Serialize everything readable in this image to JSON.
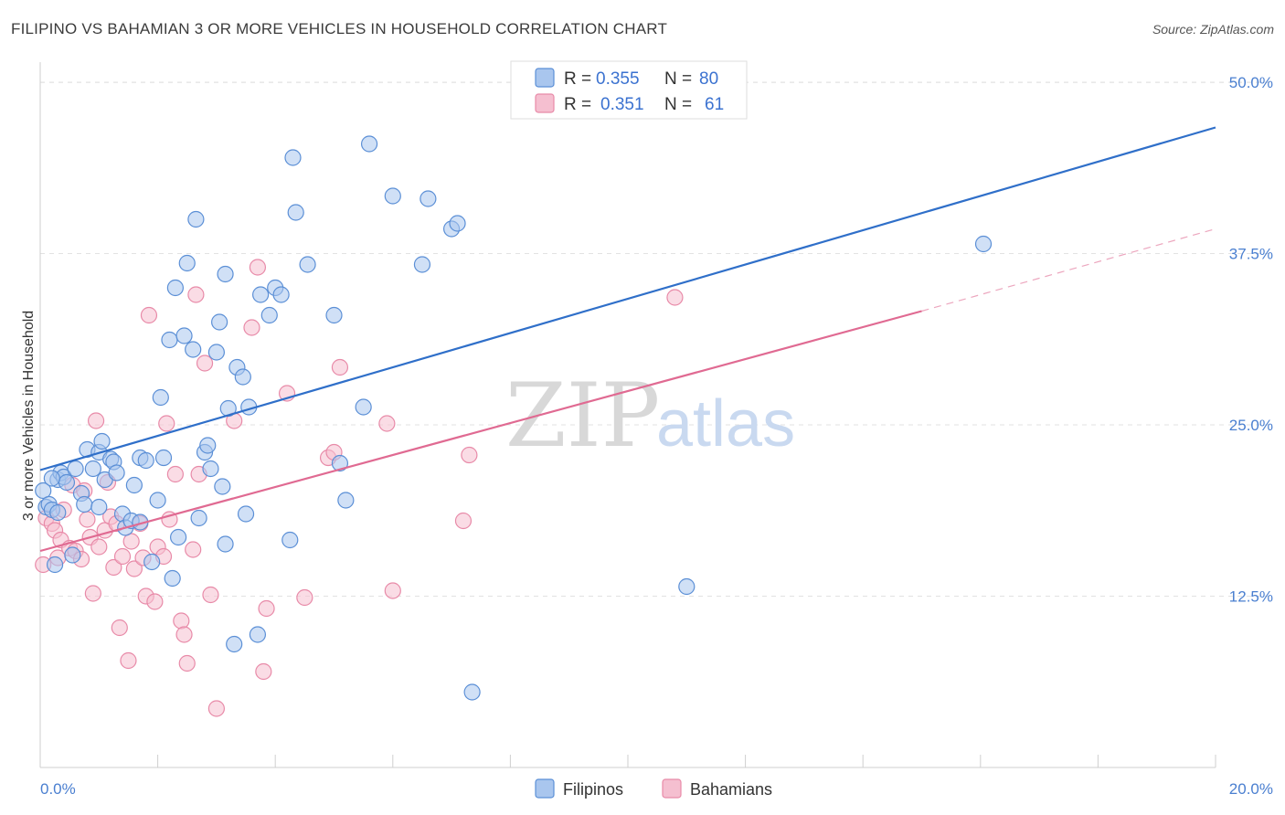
{
  "title": "FILIPINO VS BAHAMIAN 3 OR MORE VEHICLES IN HOUSEHOLD CORRELATION CHART",
  "source": "Source: ZipAtlas.com",
  "watermark": {
    "zip": "ZIP",
    "atlas": "atlas"
  },
  "colors": {
    "filipinos_fill": "#a9c6ee",
    "filipinos_stroke": "#5b8fd6",
    "filipinos_line": "#2f6fc9",
    "bahamians_fill": "#f5bfd0",
    "bahamians_stroke": "#e88aa8",
    "bahamians_line": "#e06a92",
    "grid": "#e2e2e2",
    "tick_label": "#4a7fd0"
  },
  "legend": {
    "r_label": "R =",
    "n_label": "N =",
    "rows": [
      {
        "r": "0.355",
        "n": "80"
      },
      {
        "r": "0.351",
        "n": "61"
      }
    ]
  },
  "bottom_legend": [
    "Filipinos",
    "Bahamians"
  ],
  "chart_data": {
    "type": "scatter",
    "title": "FILIPINO VS BAHAMIAN 3 OR MORE VEHICLES IN HOUSEHOLD CORRELATION CHART",
    "xlabel": "",
    "ylabel": "3 or more Vehicles in Household",
    "xlim": [
      0,
      20
    ],
    "ylim": [
      0,
      51
    ],
    "x_ticks": [
      "0.0%",
      "20.0%"
    ],
    "y_ticks": [
      {
        "value": 12.5,
        "label": "12.5%"
      },
      {
        "value": 25.0,
        "label": "25.0%"
      },
      {
        "value": 37.5,
        "label": "37.5%"
      },
      {
        "value": 50.0,
        "label": "50.0%"
      }
    ],
    "grid": true,
    "legend_position": "top-center",
    "series": [
      {
        "name": "Filipinos",
        "r": 0.355,
        "n": 80,
        "trend": {
          "x": [
            0,
            20
          ],
          "y": [
            21.7,
            46.7
          ],
          "style": "solid"
        },
        "points": [
          [
            0.05,
            20.2
          ],
          [
            0.1,
            19.0
          ],
          [
            0.15,
            19.2
          ],
          [
            0.2,
            18.8
          ],
          [
            0.25,
            14.8
          ],
          [
            0.3,
            21.0
          ],
          [
            0.35,
            21.5
          ],
          [
            0.4,
            21.2
          ],
          [
            0.45,
            20.8
          ],
          [
            0.55,
            15.5
          ],
          [
            0.6,
            21.8
          ],
          [
            0.7,
            20.0
          ],
          [
            0.75,
            19.2
          ],
          [
            0.8,
            23.2
          ],
          [
            0.9,
            21.8
          ],
          [
            1.0,
            23.0
          ],
          [
            1.0,
            19.0
          ],
          [
            1.05,
            23.8
          ],
          [
            1.1,
            21.0
          ],
          [
            1.2,
            22.5
          ],
          [
            1.25,
            22.3
          ],
          [
            1.3,
            21.5
          ],
          [
            1.4,
            18.5
          ],
          [
            1.45,
            17.5
          ],
          [
            1.55,
            18.0
          ],
          [
            1.6,
            20.6
          ],
          [
            1.7,
            22.6
          ],
          [
            1.8,
            22.4
          ],
          [
            1.9,
            15.0
          ],
          [
            2.0,
            19.5
          ],
          [
            2.05,
            27.0
          ],
          [
            2.1,
            22.6
          ],
          [
            2.2,
            31.2
          ],
          [
            2.25,
            13.8
          ],
          [
            2.3,
            35.0
          ],
          [
            2.35,
            16.8
          ],
          [
            2.45,
            31.5
          ],
          [
            2.5,
            36.8
          ],
          [
            2.6,
            30.5
          ],
          [
            2.65,
            40.0
          ],
          [
            2.7,
            18.2
          ],
          [
            2.8,
            23.0
          ],
          [
            2.85,
            23.5
          ],
          [
            2.9,
            21.8
          ],
          [
            3.0,
            30.3
          ],
          [
            3.05,
            32.5
          ],
          [
            3.15,
            36.0
          ],
          [
            3.2,
            26.2
          ],
          [
            3.3,
            9.0
          ],
          [
            3.35,
            29.2
          ],
          [
            3.45,
            28.5
          ],
          [
            3.5,
            18.5
          ],
          [
            3.55,
            26.3
          ],
          [
            3.7,
            9.7
          ],
          [
            3.75,
            34.5
          ],
          [
            3.9,
            33.0
          ],
          [
            4.0,
            35.0
          ],
          [
            4.1,
            34.5
          ],
          [
            4.25,
            16.6
          ],
          [
            4.3,
            44.5
          ],
          [
            4.35,
            40.5
          ],
          [
            4.55,
            36.7
          ],
          [
            5.0,
            33.0
          ],
          [
            5.1,
            22.2
          ],
          [
            5.2,
            19.5
          ],
          [
            5.5,
            26.3
          ],
          [
            5.6,
            45.5
          ],
          [
            6.0,
            41.7
          ],
          [
            6.5,
            36.7
          ],
          [
            6.6,
            41.5
          ],
          [
            7.0,
            39.3
          ],
          [
            7.1,
            39.7
          ],
          [
            7.35,
            5.5
          ],
          [
            11.0,
            13.2
          ],
          [
            16.05,
            38.2
          ],
          [
            3.15,
            16.3
          ],
          [
            0.3,
            18.6
          ],
          [
            1.7,
            17.9
          ],
          [
            3.1,
            20.5
          ],
          [
            0.2,
            21.1
          ]
        ]
      },
      {
        "name": "Bahamians",
        "r": 0.351,
        "n": 61,
        "trend": {
          "x": [
            0,
            15
          ],
          "y": [
            15.8,
            33.3
          ],
          "style": "solid",
          "extension": {
            "x": [
              15,
              20
            ],
            "y": [
              33.3,
              39.3
            ],
            "style": "dashed"
          }
        },
        "points": [
          [
            0.05,
            14.8
          ],
          [
            0.1,
            18.2
          ],
          [
            0.2,
            17.8
          ],
          [
            0.25,
            17.3
          ],
          [
            0.3,
            15.3
          ],
          [
            0.35,
            16.6
          ],
          [
            0.4,
            18.8
          ],
          [
            0.5,
            16.0
          ],
          [
            0.55,
            20.6
          ],
          [
            0.6,
            15.8
          ],
          [
            0.7,
            15.2
          ],
          [
            0.75,
            20.2
          ],
          [
            0.8,
            18.1
          ],
          [
            0.85,
            16.8
          ],
          [
            0.9,
            12.7
          ],
          [
            0.95,
            25.3
          ],
          [
            1.0,
            16.1
          ],
          [
            1.1,
            17.3
          ],
          [
            1.15,
            20.8
          ],
          [
            1.2,
            18.3
          ],
          [
            1.25,
            14.6
          ],
          [
            1.3,
            17.8
          ],
          [
            1.35,
            10.2
          ],
          [
            1.4,
            15.4
          ],
          [
            1.5,
            7.8
          ],
          [
            1.55,
            16.5
          ],
          [
            1.6,
            14.5
          ],
          [
            1.7,
            17.8
          ],
          [
            1.75,
            15.3
          ],
          [
            1.8,
            12.5
          ],
          [
            1.85,
            33.0
          ],
          [
            2.0,
            16.1
          ],
          [
            2.1,
            15.4
          ],
          [
            2.15,
            25.1
          ],
          [
            2.2,
            18.1
          ],
          [
            2.3,
            21.4
          ],
          [
            2.4,
            10.7
          ],
          [
            2.45,
            9.7
          ],
          [
            2.5,
            7.6
          ],
          [
            2.6,
            15.9
          ],
          [
            2.65,
            34.5
          ],
          [
            2.7,
            21.4
          ],
          [
            2.8,
            29.5
          ],
          [
            2.9,
            12.6
          ],
          [
            3.0,
            4.3
          ],
          [
            3.3,
            25.3
          ],
          [
            3.6,
            32.1
          ],
          [
            3.7,
            36.5
          ],
          [
            3.8,
            7.0
          ],
          [
            3.85,
            11.6
          ],
          [
            4.2,
            27.3
          ],
          [
            4.5,
            12.4
          ],
          [
            4.9,
            22.6
          ],
          [
            5.0,
            23.0
          ],
          [
            5.1,
            29.2
          ],
          [
            5.9,
            25.1
          ],
          [
            6.0,
            12.9
          ],
          [
            7.2,
            18.0
          ],
          [
            7.3,
            22.8
          ],
          [
            10.8,
            34.3
          ],
          [
            1.95,
            12.1
          ]
        ]
      }
    ]
  }
}
